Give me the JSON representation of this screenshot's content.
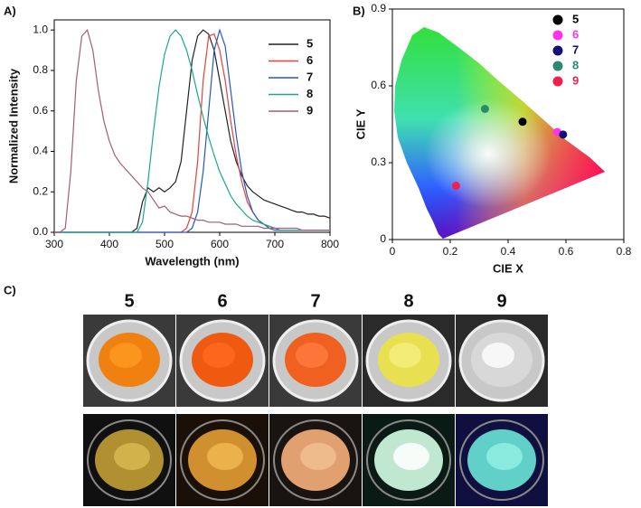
{
  "panels": {
    "labels": [
      "A)",
      "B)",
      "C)"
    ]
  },
  "photos": {
    "labels": [
      "5",
      "6",
      "7",
      "8",
      "9"
    ]
  },
  "chart_data": [
    {
      "type": "line",
      "x_label": "Wavelength (nm)",
      "y_label": "Normalized Intensity",
      "xlim": [
        300,
        800
      ],
      "xticks": [
        300,
        400,
        500,
        600,
        700,
        800
      ],
      "ylim": [
        0,
        1.05
      ],
      "yticks": [
        {
          "value": 0,
          "label": "0.0"
        },
        {
          "value": 0.2,
          "label": "0.2"
        },
        {
          "value": 0.4,
          "label": "0.4"
        },
        {
          "value": 0.6,
          "label": "0.6"
        },
        {
          "value": 0.8,
          "label": "0.8"
        },
        {
          "value": 1,
          "label": "1.0"
        }
      ],
      "legend": "upper-right",
      "x": [
        300,
        310,
        320,
        330,
        340,
        350,
        360,
        370,
        380,
        390,
        400,
        410,
        420,
        430,
        440,
        450,
        460,
        470,
        480,
        490,
        500,
        510,
        520,
        530,
        540,
        550,
        560,
        570,
        580,
        590,
        600,
        610,
        620,
        630,
        640,
        650,
        660,
        670,
        680,
        690,
        700,
        710,
        720,
        730,
        740,
        750,
        760,
        770,
        780,
        790,
        800
      ],
      "series": [
        {
          "name": "5",
          "color": "#222222",
          "values": [
            0,
            0,
            0,
            0,
            0,
            0,
            0,
            0,
            0,
            0,
            0,
            0,
            0,
            0,
            0,
            0.02,
            0.15,
            0.22,
            0.2,
            0.22,
            0.2,
            0.22,
            0.25,
            0.35,
            0.6,
            0.85,
            0.97,
            1.0,
            0.98,
            0.9,
            0.75,
            0.6,
            0.45,
            0.35,
            0.28,
            0.23,
            0.2,
            0.18,
            0.16,
            0.15,
            0.14,
            0.13,
            0.12,
            0.11,
            0.1,
            0.1,
            0.09,
            0.09,
            0.08,
            0.08,
            0.07
          ]
        },
        {
          "name": "6",
          "color": "#e8403a",
          "values": [
            0,
            0,
            0,
            0,
            0,
            0,
            0,
            0,
            0,
            0,
            0,
            0,
            0,
            0,
            0,
            0,
            0,
            0,
            0,
            0,
            0,
            0,
            0,
            0,
            0.02,
            0.1,
            0.35,
            0.75,
            0.97,
            0.98,
            0.9,
            0.75,
            0.55,
            0.38,
            0.25,
            0.15,
            0.1,
            0.06,
            0.04,
            0.03,
            0.02,
            0.01,
            0.01,
            0.01,
            0.01,
            0.01,
            0.01,
            0.01,
            0.01,
            0.01,
            0.01
          ]
        },
        {
          "name": "7",
          "color": "#2457c5",
          "values": [
            0,
            0,
            0,
            0,
            0,
            0,
            0,
            0,
            0,
            0,
            0,
            0,
            0,
            0,
            0,
            0,
            0,
            0,
            0,
            0,
            0,
            0,
            0,
            0,
            0,
            0.02,
            0.1,
            0.3,
            0.6,
            0.9,
            1.0,
            0.92,
            0.7,
            0.48,
            0.3,
            0.18,
            0.1,
            0.06,
            0.04,
            0.02,
            0.01,
            0.01,
            0.01,
            0.01,
            0.01,
            0.01,
            0.01,
            0.01,
            0.01,
            0.01,
            0.01
          ]
        },
        {
          "name": "8",
          "color": "#1aa88a",
          "values": [
            0,
            0,
            0,
            0,
            0,
            0,
            0,
            0,
            0,
            0,
            0,
            0,
            0,
            0,
            0,
            0,
            0.05,
            0.25,
            0.5,
            0.72,
            0.88,
            0.97,
            1.0,
            0.97,
            0.9,
            0.8,
            0.68,
            0.57,
            0.47,
            0.38,
            0.3,
            0.24,
            0.18,
            0.14,
            0.11,
            0.08,
            0.06,
            0.05,
            0.04,
            0.03,
            0.02,
            0.01,
            0.01,
            0.01,
            0.01,
            0.01,
            0.01,
            0.01,
            0.01,
            0.01,
            0.01
          ]
        },
        {
          "name": "9",
          "color": "#a85a78",
          "values": [
            0,
            0,
            0.02,
            0.3,
            0.75,
            0.97,
            1.0,
            0.9,
            0.7,
            0.55,
            0.45,
            0.38,
            0.34,
            0.31,
            0.28,
            0.25,
            0.22,
            0.2,
            0.16,
            0.12,
            0.13,
            0.1,
            0.09,
            0.08,
            0.08,
            0.07,
            0.06,
            0.06,
            0.05,
            0.05,
            0.05,
            0.04,
            0.04,
            0.04,
            0.03,
            0.03,
            0.03,
            0.03,
            0.02,
            0.02,
            0.02,
            0.02,
            0.02,
            0.02,
            0.02,
            0.01,
            0.01,
            0.01,
            0.01,
            0.01,
            0.01
          ]
        }
      ]
    },
    {
      "type": "scatter",
      "x_label": "CIE X",
      "y_label": "CIE Y",
      "xlim": [
        0,
        0.8
      ],
      "xticks": [
        0,
        0.2,
        0.4,
        0.6,
        0.8
      ],
      "ylim": [
        0,
        0.9
      ],
      "yticks": [
        0,
        0.3,
        0.6,
        0.9
      ],
      "legend": "upper-right",
      "series": [
        {
          "name": "5",
          "color": "#000000",
          "x": [
            0.45
          ],
          "values": [
            0.46
          ]
        },
        {
          "name": "6",
          "color": "#ff33ee",
          "x": [
            0.57
          ],
          "values": [
            0.42
          ]
        },
        {
          "name": "7",
          "color": "#10107a",
          "x": [
            0.59
          ],
          "values": [
            0.41
          ]
        },
        {
          "name": "8",
          "color": "#2a8a70",
          "x": [
            0.32
          ],
          "values": [
            0.51
          ]
        },
        {
          "name": "9",
          "color": "#f0204a",
          "x": [
            0.22
          ],
          "values": [
            0.21
          ]
        }
      ]
    }
  ]
}
